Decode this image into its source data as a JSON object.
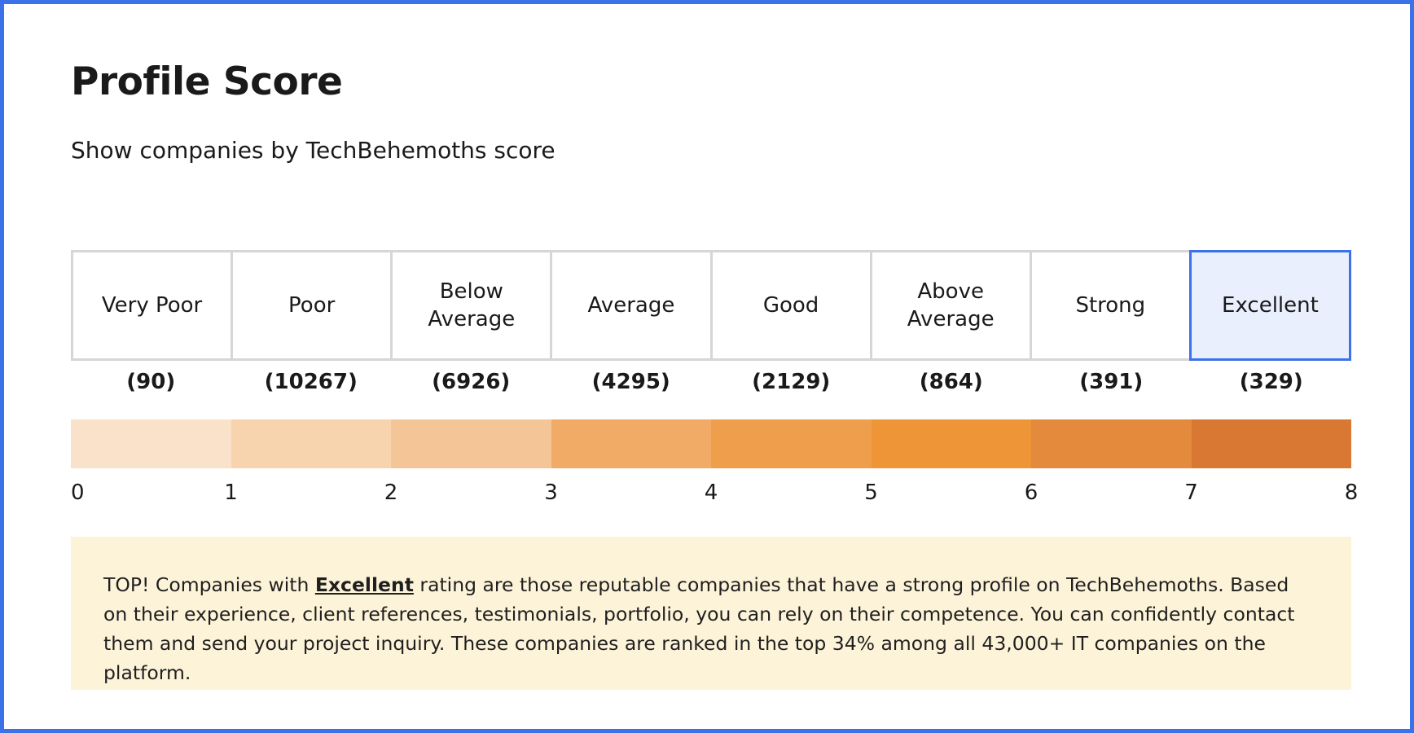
{
  "title": "Profile Score",
  "subtitle": "Show companies by TechBehemoths score",
  "levels": [
    {
      "label": "Very Poor",
      "count": "(90)",
      "color": "#f9e2c9"
    },
    {
      "label": "Poor",
      "count": "(10267)",
      "color": "#f7d4ad"
    },
    {
      "label": "Below Average",
      "count": "(6926)",
      "color": "#f4c697"
    },
    {
      "label": "Average",
      "count": "(4295)",
      "color": "#f1ab66"
    },
    {
      "label": "Good",
      "count": "(2129)",
      "color": "#ef9e4c"
    },
    {
      "label": "Above Average",
      "count": "(864)",
      "color": "#ee9637"
    },
    {
      "label": "Strong",
      "count": "(391)",
      "color": "#e38a3c"
    },
    {
      "label": "Excellent",
      "count": "(329)",
      "color": "#d97832"
    }
  ],
  "selected_level": "Excellent",
  "ticks": [
    "0",
    "1",
    "2",
    "3",
    "4",
    "5",
    "6",
    "7",
    "8"
  ],
  "note": {
    "prefix": "TOP! Companies with ",
    "link": "Excellent",
    "suffix": " rating are those reputable companies that have a strong profile on TechBehemoths. Based on their experience, client references, testimonials, portfolio, you can rely on their competence. You can confidently contact them and send your project inquiry. These companies are ranked in the top 34% among all 43,000+ IT companies on the platform."
  },
  "colors": {
    "accent": "#3b72ea",
    "selected_bg": "#e9effd",
    "note_bg": "#fdf3d8"
  }
}
